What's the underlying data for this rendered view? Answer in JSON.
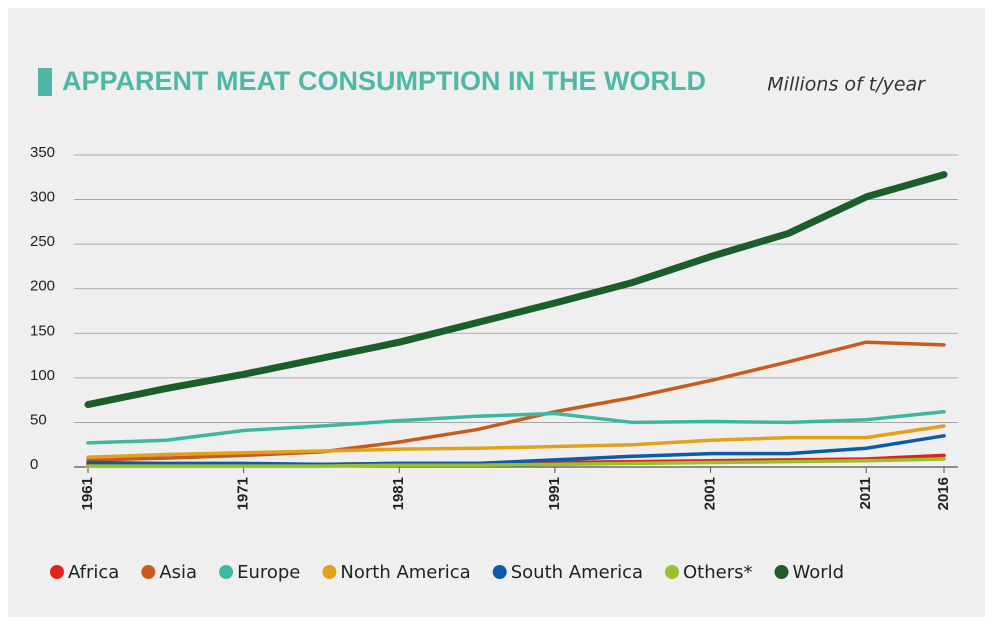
{
  "chart_data": {
    "type": "line",
    "title": "APPARENT MEAT CONSUMPTION IN THE WORLD",
    "subtitle": "Millions of t/year",
    "x": [
      1961,
      1966,
      1971,
      1976,
      1981,
      1986,
      1991,
      1996,
      2001,
      2006,
      2011,
      2016
    ],
    "xlim": [
      1961,
      2016
    ],
    "xticks": [
      1961,
      1971,
      1981,
      1991,
      2001,
      2011,
      2016
    ],
    "ylim": [
      0,
      350
    ],
    "yticks": [
      0,
      50,
      100,
      150,
      200,
      250,
      300,
      350
    ],
    "grid": true,
    "legend": "bottom",
    "series": [
      {
        "name": "Africa",
        "color": "#e2231a",
        "values": [
          3,
          3,
          3,
          3,
          4,
          4,
          5,
          6,
          7,
          8,
          9,
          13
        ]
      },
      {
        "name": "Asia",
        "color": "#c85a1e",
        "values": [
          8,
          10,
          13,
          17,
          28,
          42,
          62,
          78,
          97,
          118,
          140,
          137
        ]
      },
      {
        "name": "Europe",
        "color": "#3cb8a0",
        "values": [
          27,
          30,
          41,
          46,
          52,
          57,
          60,
          50,
          51,
          50,
          53,
          62
        ]
      },
      {
        "name": "North America",
        "color": "#e0a21b",
        "values": [
          11,
          14,
          16,
          18,
          20,
          21,
          23,
          25,
          30,
          33,
          33,
          46
        ]
      },
      {
        "name": "South America",
        "color": "#0d5ba8",
        "values": [
          5,
          4,
          4,
          3,
          4,
          4,
          8,
          12,
          15,
          15,
          21,
          35
        ]
      },
      {
        "name": "Others*",
        "color": "#9bc12a",
        "values": [
          1,
          1,
          1,
          1,
          2,
          2,
          3,
          4,
          5,
          6,
          7,
          9
        ]
      },
      {
        "name": "World",
        "color": "#1b5e2a",
        "values": [
          70,
          88,
          104,
          122,
          140,
          162,
          184,
          207,
          236,
          262,
          303,
          328
        ]
      }
    ]
  }
}
